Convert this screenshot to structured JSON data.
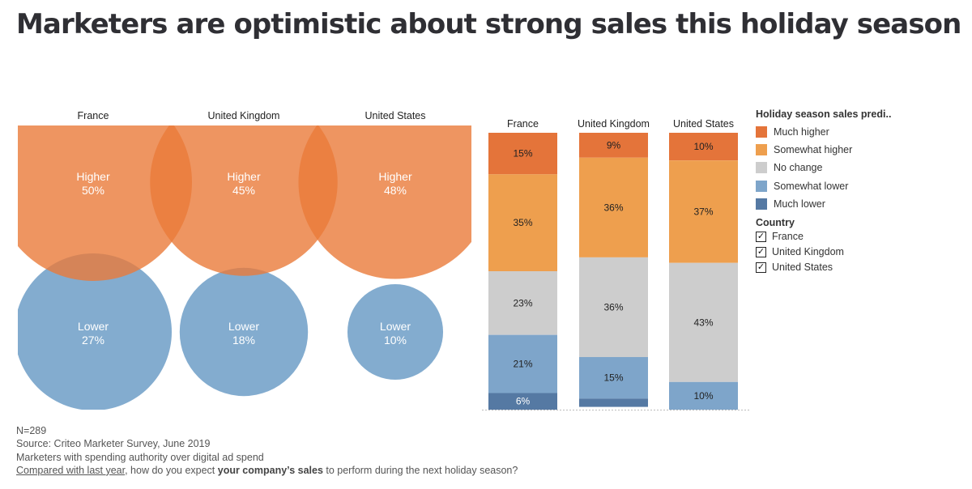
{
  "title": "Marketers are optimistic about strong sales this holiday season",
  "colors": {
    "higher": "#EA7A3A",
    "lower": "#6D9DC7",
    "much_higher": "#E4743A",
    "somewhat_higher": "#EE9F4E",
    "no_change": "#CDCDCD",
    "somewhat_lower": "#7EA5CA",
    "much_lower": "#5579A3"
  },
  "chart_data": [
    {
      "type": "bubble",
      "title": "",
      "countries": [
        "France",
        "United Kingdom",
        "United States"
      ],
      "series": [
        {
          "name": "Higher",
          "values": [
            50,
            45,
            48
          ]
        },
        {
          "name": "Lower",
          "values": [
            27,
            18,
            10
          ]
        }
      ],
      "unit": "%"
    },
    {
      "type": "bar",
      "stacked": true,
      "categories": [
        "France",
        "United Kingdom",
        "United States"
      ],
      "series": [
        {
          "name": "Much higher",
          "values": [
            15,
            9,
            10
          ]
        },
        {
          "name": "Somewhat higher",
          "values": [
            35,
            36,
            37
          ]
        },
        {
          "name": "No change",
          "values": [
            23,
            36,
            43
          ]
        },
        {
          "name": "Somewhat lower",
          "values": [
            21,
            15,
            10
          ]
        },
        {
          "name": "Much lower",
          "values": [
            6,
            3,
            0
          ]
        }
      ],
      "ylim": [
        0,
        100
      ],
      "unit": "%"
    }
  ],
  "legend": {
    "title": "Holiday season sales predi..",
    "items": [
      "Much higher",
      "Somewhat higher",
      "No change",
      "Somewhat lower",
      "Much lower"
    ]
  },
  "filter": {
    "title": "Country",
    "items": [
      "France",
      "United Kingdom",
      "United States"
    ],
    "check_glyph": "✓"
  },
  "footer": {
    "n": "N=289",
    "source": "Source: Criteo Marketer Survey, June 2019",
    "population": "Marketers with spending authority over digital ad spend",
    "question_link": "Compared with last year",
    "question_mid": ", how do you expect ",
    "question_bold": "your company’s sales",
    "question_end": " to perform during the next holiday season?"
  }
}
